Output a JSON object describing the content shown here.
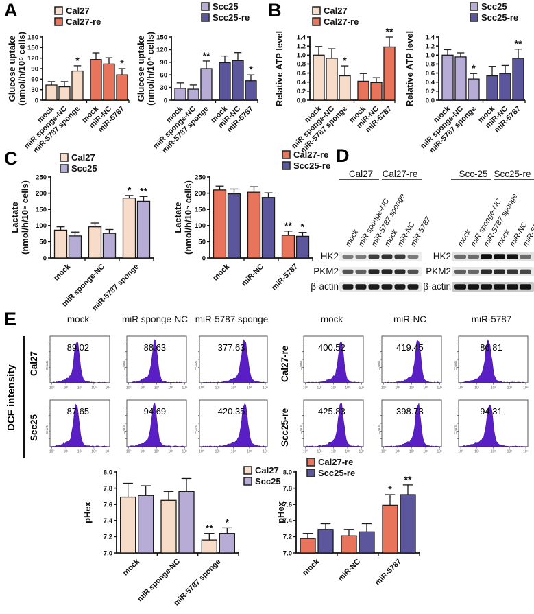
{
  "panel_labels": {
    "A": "A",
    "B": "B",
    "C": "C",
    "D": "D",
    "E": "E"
  },
  "colors": {
    "cal27": "#f7dcca",
    "cal27re": "#e8745c",
    "scc25": "#b6acd6",
    "scc25re": "#5c569c",
    "hist_fill": "#5a1ec5",
    "hist_stroke": "#38117e",
    "axis": "#111111"
  },
  "chart_data": [
    {
      "id": "A1",
      "type": "bar",
      "ylabel": [
        "Glucose uptake",
        "(nmol/h/10⁶ cells)"
      ],
      "ymin": 0,
      "ymax": 180,
      "ystep": 30,
      "ydec": 0,
      "legend": [
        {
          "label": "Cal27",
          "color": "cal27"
        },
        {
          "label": "Cal27-re",
          "color": "cal27re"
        }
      ],
      "bars": [
        {
          "label": "mock",
          "value": 43,
          "err": 10,
          "color": "cal27",
          "sig": ""
        },
        {
          "label": "miR sponge-NC",
          "value": 38,
          "err": 15,
          "color": "cal27",
          "sig": ""
        },
        {
          "label": "miR-5787 sponge",
          "value": 83,
          "err": 15,
          "color": "cal27",
          "sig": "*"
        },
        {
          "label": "mock",
          "value": 116,
          "err": 19,
          "color": "cal27re",
          "sig": ""
        },
        {
          "label": "miR-NC",
          "value": 103,
          "err": 18,
          "color": "cal27re",
          "sig": ""
        },
        {
          "label": "miR-5787",
          "value": 72,
          "err": 18,
          "color": "cal27re",
          "sig": "*"
        }
      ]
    },
    {
      "id": "A2",
      "type": "bar",
      "ylabel": [
        "Glucose uptake",
        "(nmol/h/10⁶ cells)"
      ],
      "ymin": 0,
      "ymax": 150,
      "ystep": 30,
      "ydec": 0,
      "legend": [
        {
          "label": "Scc25",
          "color": "scc25"
        },
        {
          "label": "Scc25-re",
          "color": "scc25re"
        }
      ],
      "bars": [
        {
          "label": "mock",
          "value": 28,
          "err": 13,
          "color": "scc25",
          "sig": ""
        },
        {
          "label": "miR sponge-NC",
          "value": 26,
          "err": 10,
          "color": "scc25",
          "sig": ""
        },
        {
          "label": "miR-5787 sponge",
          "value": 75,
          "err": 18,
          "color": "scc25",
          "sig": "**"
        },
        {
          "label": "mock",
          "value": 89,
          "err": 16,
          "color": "scc25re",
          "sig": ""
        },
        {
          "label": "miR-NC",
          "value": 94,
          "err": 19,
          "color": "scc25re",
          "sig": ""
        },
        {
          "label": "miR-5787",
          "value": 46,
          "err": 14,
          "color": "scc25re",
          "sig": "*"
        }
      ]
    },
    {
      "id": "B1",
      "type": "bar",
      "ylabel": [
        "Relative ATP level"
      ],
      "ymin": 0,
      "ymax": 1.4,
      "ystep": 0.2,
      "ydec": 1,
      "legend": [
        {
          "label": "Cal27",
          "color": "cal27"
        },
        {
          "label": "Cal27-re",
          "color": "cal27re"
        }
      ],
      "bars": [
        {
          "label": "mock",
          "value": 1.0,
          "err": 0.19,
          "color": "cal27",
          "sig": ""
        },
        {
          "label": "miR sponge-NC",
          "value": 0.93,
          "err": 0.21,
          "color": "cal27",
          "sig": ""
        },
        {
          "label": "miR-5787 sponge",
          "value": 0.54,
          "err": 0.22,
          "color": "cal27",
          "sig": "*"
        },
        {
          "label": "mock",
          "value": 0.42,
          "err": 0.17,
          "color": "cal27re",
          "sig": ""
        },
        {
          "label": "miR-NC",
          "value": 0.39,
          "err": 0.11,
          "color": "cal27re",
          "sig": ""
        },
        {
          "label": "miR-5787",
          "value": 1.18,
          "err": 0.22,
          "color": "cal27re",
          "sig": "**"
        }
      ]
    },
    {
      "id": "B2",
      "type": "bar",
      "ylabel": [
        "Relative ATP level"
      ],
      "ymin": 0,
      "ymax": 1.4,
      "ystep": 0.2,
      "ydec": 1,
      "legend": [
        {
          "label": "Scc25",
          "color": "scc25"
        },
        {
          "label": "Scc25-re",
          "color": "scc25re"
        }
      ],
      "bars": [
        {
          "label": "mock",
          "value": 1.0,
          "err": 0.12,
          "color": "scc25",
          "sig": ""
        },
        {
          "label": "miR sponge-NC",
          "value": 0.96,
          "err": 0.09,
          "color": "scc25",
          "sig": ""
        },
        {
          "label": "miR-5787 sponge",
          "value": 0.47,
          "err": 0.12,
          "color": "scc25",
          "sig": "*"
        },
        {
          "label": "mock",
          "value": 0.54,
          "err": 0.21,
          "color": "scc25re",
          "sig": ""
        },
        {
          "label": "miR-NC",
          "value": 0.59,
          "err": 0.18,
          "color": "scc25re",
          "sig": ""
        },
        {
          "label": "miR-5787",
          "value": 0.93,
          "err": 0.2,
          "color": "scc25re",
          "sig": "**"
        }
      ]
    },
    {
      "id": "C1",
      "type": "grouped-bar",
      "ylabel": [
        "Lactate",
        "(nmol/h/10⁵ cells)"
      ],
      "ymin": 0,
      "ymax": 250,
      "ystep": 50,
      "ydec": 0,
      "legend": [
        {
          "label": "Cal27",
          "color": "cal27"
        },
        {
          "label": "Scc25",
          "color": "scc25"
        }
      ],
      "categories": [
        "mock",
        "miR sponge-NC",
        "miR-5787 sponge"
      ],
      "series": [
        {
          "name": "Cal27",
          "color": "cal27",
          "values": [
            86,
            96,
            185
          ],
          "errs": [
            10,
            12,
            8
          ],
          "sigs": [
            "",
            "",
            "*"
          ]
        },
        {
          "name": "Scc25",
          "color": "scc25",
          "values": [
            68,
            76,
            175
          ],
          "errs": [
            12,
            12,
            15
          ],
          "sigs": [
            "",
            "",
            "**"
          ]
        }
      ]
    },
    {
      "id": "C2",
      "type": "grouped-bar",
      "ylabel": [
        "Lactate",
        "(nmol/h/10⁵ cells)"
      ],
      "ymin": 0,
      "ymax": 250,
      "ystep": 50,
      "ydec": 0,
      "legend": [
        {
          "label": "Cal27-re",
          "color": "cal27re"
        },
        {
          "label": "Scc25-re",
          "color": "scc25re"
        }
      ],
      "categories": [
        "mock",
        "miR-NC",
        "miR-5787"
      ],
      "series": [
        {
          "name": "Cal27-re",
          "color": "cal27re",
          "values": [
            210,
            203,
            70
          ],
          "errs": [
            12,
            17,
            13
          ],
          "sigs": [
            "",
            "",
            "**"
          ]
        },
        {
          "name": "Scc25-re",
          "color": "scc25re",
          "values": [
            198,
            187,
            67
          ],
          "errs": [
            15,
            14,
            12
          ],
          "sigs": [
            "",
            "",
            "*"
          ]
        }
      ]
    },
    {
      "id": "P1",
      "type": "grouped-bar",
      "ylabel": [
        "pHex"
      ],
      "ymin": 7.0,
      "ymax": 8.0,
      "ystep": 0.2,
      "ydec": 1,
      "legend": [
        {
          "label": "Cal27",
          "color": "cal27"
        },
        {
          "label": "Scc25",
          "color": "scc25"
        }
      ],
      "categories": [
        "mock",
        "miR sponge-NC",
        "miR-5787 sponge"
      ],
      "series": [
        {
          "name": "Cal27",
          "color": "cal27",
          "values": [
            7.69,
            7.65,
            7.16
          ],
          "errs": [
            0.17,
            0.11,
            0.08
          ],
          "sigs": [
            "",
            "",
            "**"
          ]
        },
        {
          "name": "Scc25",
          "color": "scc25",
          "values": [
            7.71,
            7.76,
            7.24
          ],
          "errs": [
            0.12,
            0.16,
            0.07
          ],
          "sigs": [
            "",
            "",
            "*"
          ]
        }
      ]
    },
    {
      "id": "P2",
      "type": "grouped-bar",
      "ylabel": [
        "pHex"
      ],
      "ymin": 7.0,
      "ymax": 8.0,
      "ystep": 0.2,
      "ydec": 1,
      "legend": [
        {
          "label": "Cal27-re",
          "color": "cal27re"
        },
        {
          "label": "Scc25-re",
          "color": "scc25re"
        }
      ],
      "categories": [
        "mock",
        "miR-NC",
        "miR-5787"
      ],
      "series": [
        {
          "name": "Cal27-re",
          "color": "cal27re",
          "values": [
            7.18,
            7.21,
            7.59
          ],
          "errs": [
            0.06,
            0.08,
            0.13
          ],
          "sigs": [
            "",
            "",
            "*"
          ]
        },
        {
          "name": "Scc25-re",
          "color": "scc25re",
          "values": [
            7.29,
            7.26,
            7.72
          ],
          "errs": [
            0.07,
            0.1,
            0.12
          ],
          "sigs": [
            "",
            "",
            "**"
          ]
        }
      ]
    }
  ],
  "westerns": {
    "row_labels": [
      "HK2",
      "PKM2",
      "β-actin"
    ],
    "blots": [
      {
        "groups": [
          "Cal27",
          "Cal27-re"
        ],
        "lanes": [
          "mock",
          "miR sponge-NC",
          "miR-5787 sponge",
          "mock",
          "miR-NC",
          "miR-5787"
        ],
        "rows": [
          {
            "name": "HK2",
            "bands": [
              0.5,
              0.5,
              0.78,
              0.82,
              0.78,
              0.5
            ]
          },
          {
            "name": "PKM2",
            "bands": [
              0.68,
              0.62,
              0.88,
              0.88,
              0.85,
              0.68
            ]
          },
          {
            "name": "β-actin",
            "bands": [
              0.92,
              0.92,
              0.92,
              0.92,
              0.92,
              0.92
            ]
          }
        ]
      },
      {
        "groups": [
          "Scc-25",
          "Scc25-re"
        ],
        "lanes": [
          "mock",
          "miR sponge-NC",
          "miR-5787 sponge",
          "mock",
          "miR-NC",
          "miR-5787"
        ],
        "rows": [
          {
            "name": "HK2",
            "bands": [
              0.55,
              0.55,
              0.97,
              0.97,
              0.95,
              0.55
            ]
          },
          {
            "name": "PKM2",
            "bands": [
              0.62,
              0.58,
              0.85,
              0.85,
              0.8,
              0.72
            ]
          },
          {
            "name": "β-actin",
            "bands": [
              0.95,
              0.95,
              0.95,
              0.95,
              0.95,
              0.95
            ]
          }
        ]
      }
    ]
  },
  "flow": {
    "ylabel": "DCF intensity",
    "x_axis_ticks": [
      "10⁰",
      "10¹",
      "10²",
      "10³",
      "10⁴"
    ],
    "y_axis_label": "Counts",
    "left_block": {
      "col_headers": [
        "mock",
        "miR sponge-NC",
        "miR-5787 sponge"
      ],
      "rows": [
        {
          "label": "Cal27",
          "cells": [
            {
              "value": "89.02",
              "peak": 0.45
            },
            {
              "value": "88.63",
              "peak": 0.47
            },
            {
              "value": "377.63",
              "peak": 0.67
            }
          ]
        },
        {
          "label": "Scc25",
          "cells": [
            {
              "value": "87.65",
              "peak": 0.44
            },
            {
              "value": "94.69",
              "peak": 0.46
            },
            {
              "value": "420.35",
              "peak": 0.67
            }
          ]
        }
      ]
    },
    "right_block": {
      "col_headers": [
        "mock",
        "miR-NC",
        "miR-5787"
      ],
      "rows": [
        {
          "label": "Cal27-re",
          "cells": [
            {
              "value": "400.52",
              "peak": 0.63
            },
            {
              "value": "419.45",
              "peak": 0.61
            },
            {
              "value": "86.81",
              "peak": 0.43
            }
          ]
        },
        {
          "label": "Scc25-re",
          "cells": [
            {
              "value": "425.83",
              "peak": 0.63
            },
            {
              "value": "398.73",
              "peak": 0.61
            },
            {
              "value": "94.31",
              "peak": 0.45
            }
          ]
        }
      ]
    }
  }
}
